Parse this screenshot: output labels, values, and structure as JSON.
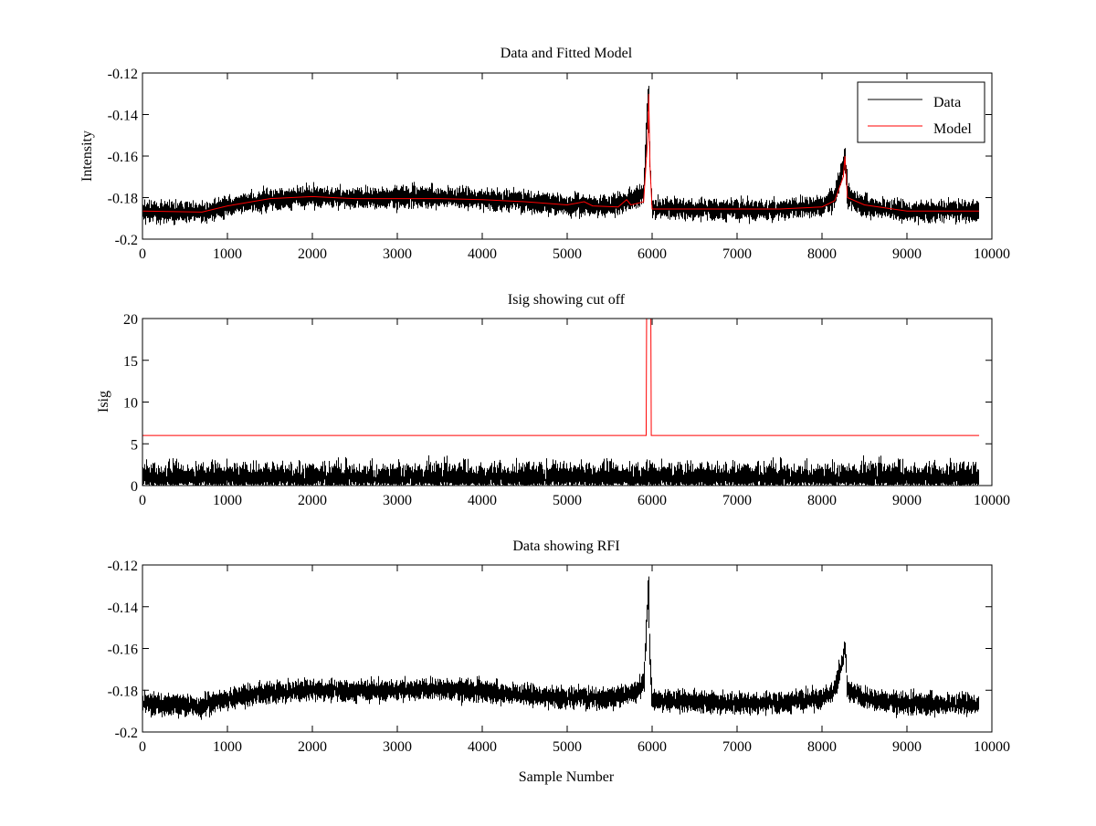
{
  "colors": {
    "data": "#000000",
    "model": "#ff0000",
    "axes": "#000000",
    "background": "#ffffff"
  },
  "chart_data": [
    {
      "type": "line",
      "title": "Data and Fitted Model",
      "xlabel": "",
      "ylabel": "Intensity",
      "xlim": [
        0,
        10000
      ],
      "ylim": [
        -0.2,
        -0.12
      ],
      "xticks": [
        0,
        1000,
        2000,
        3000,
        4000,
        5000,
        6000,
        7000,
        8000,
        9000,
        10000
      ],
      "xtick_labels": [
        "0",
        "1000",
        "2000",
        "3000",
        "4000",
        "5000",
        "6000",
        "7000",
        "8000",
        "9000",
        "10000"
      ],
      "yticks": [
        -0.2,
        -0.18,
        -0.16,
        -0.14,
        -0.12
      ],
      "ytick_labels": [
        "-0.2",
        "-0.18",
        "-0.16",
        "-0.14",
        "-0.12"
      ],
      "legend": {
        "position": "top-right",
        "entries": [
          "Data",
          "Model"
        ]
      },
      "series": [
        {
          "name": "Data",
          "color": "#000000",
          "kind": "noisy",
          "n": 9850,
          "noise_amp": 0.0045,
          "x": [
            0,
            700,
            1000,
            1500,
            2000,
            2500,
            3000,
            3500,
            4000,
            4500,
            5000,
            5500,
            5700,
            5900,
            5950,
            5960,
            5970,
            6000,
            6500,
            7000,
            7500,
            8000,
            8150,
            8250,
            8270,
            8300,
            8500,
            9000,
            9850
          ],
          "y": [
            -0.1865,
            -0.1875,
            -0.184,
            -0.181,
            -0.1795,
            -0.1805,
            -0.18,
            -0.1795,
            -0.1805,
            -0.182,
            -0.1835,
            -0.184,
            -0.182,
            -0.178,
            -0.135,
            -0.128,
            -0.16,
            -0.1845,
            -0.1855,
            -0.186,
            -0.186,
            -0.184,
            -0.18,
            -0.165,
            -0.158,
            -0.18,
            -0.184,
            -0.1865,
            -0.1865
          ]
        },
        {
          "name": "Model",
          "color": "#ff0000",
          "kind": "line",
          "x": [
            0,
            700,
            1000,
            1500,
            2000,
            2500,
            3000,
            3500,
            4000,
            4500,
            5000,
            5200,
            5300,
            5600,
            5700,
            5750,
            5900,
            5950,
            5960,
            5975,
            6000,
            6500,
            7000,
            7500,
            8000,
            8150,
            8250,
            8270,
            8300,
            8500,
            9000,
            9850
          ],
          "y": [
            -0.1865,
            -0.187,
            -0.184,
            -0.1805,
            -0.1795,
            -0.1805,
            -0.1805,
            -0.1805,
            -0.181,
            -0.182,
            -0.1835,
            -0.182,
            -0.184,
            -0.1845,
            -0.181,
            -0.1835,
            -0.182,
            -0.15,
            -0.13,
            -0.165,
            -0.1855,
            -0.1855,
            -0.1855,
            -0.1855,
            -0.1845,
            -0.1815,
            -0.17,
            -0.16,
            -0.18,
            -0.1835,
            -0.1865,
            -0.1865
          ]
        }
      ]
    },
    {
      "type": "line",
      "title": "Isig showing cut off",
      "xlabel": "",
      "ylabel": "Isig",
      "xlim": [
        0,
        10000
      ],
      "ylim": [
        0,
        20
      ],
      "xticks": [
        0,
        1000,
        2000,
        3000,
        4000,
        5000,
        6000,
        7000,
        8000,
        9000,
        10000
      ],
      "xtick_labels": [
        "0",
        "1000",
        "2000",
        "3000",
        "4000",
        "5000",
        "6000",
        "7000",
        "8000",
        "9000",
        "10000"
      ],
      "yticks": [
        0,
        5,
        10,
        15,
        20
      ],
      "ytick_labels": [
        "0",
        "5",
        "10",
        "15",
        "20"
      ],
      "series": [
        {
          "name": "Isig",
          "color": "#000000",
          "kind": "abs-noise",
          "n": 9850,
          "noise_amp": 1.2,
          "x": [
            0,
            9850
          ],
          "y": [
            0,
            0
          ]
        },
        {
          "name": "Cut off",
          "color": "#ff0000",
          "kind": "line",
          "x": [
            0,
            5930,
            5935,
            5985,
            5990,
            9850
          ],
          "y": [
            6,
            6,
            20,
            20,
            6,
            6
          ]
        }
      ]
    },
    {
      "type": "line",
      "title": "Data showing RFI",
      "xlabel": "Sample Number",
      "ylabel": "",
      "xlim": [
        0,
        10000
      ],
      "ylim": [
        -0.2,
        -0.12
      ],
      "xticks": [
        0,
        1000,
        2000,
        3000,
        4000,
        5000,
        6000,
        7000,
        8000,
        9000,
        10000
      ],
      "xtick_labels": [
        "0",
        "1000",
        "2000",
        "3000",
        "4000",
        "5000",
        "6000",
        "7000",
        "8000",
        "9000",
        "10000"
      ],
      "yticks": [
        -0.2,
        -0.18,
        -0.16,
        -0.14,
        -0.12
      ],
      "ytick_labels": [
        "-0.2",
        "-0.18",
        "-0.16",
        "-0.14",
        "-0.12"
      ],
      "series": [
        {
          "name": "Data",
          "color": "#000000",
          "kind": "noisy",
          "n": 9850,
          "noise_amp": 0.0045,
          "x": [
            0,
            700,
            1000,
            1500,
            2000,
            2500,
            3000,
            3500,
            4000,
            4500,
            5000,
            5500,
            5700,
            5900,
            5950,
            5960,
            5970,
            6000,
            6500,
            7000,
            7500,
            8000,
            8150,
            8250,
            8270,
            8300,
            8500,
            9000,
            9850
          ],
          "y": [
            -0.1865,
            -0.1875,
            -0.184,
            -0.181,
            -0.1795,
            -0.1805,
            -0.18,
            -0.1795,
            -0.1805,
            -0.182,
            -0.1835,
            -0.184,
            -0.182,
            -0.178,
            -0.135,
            -0.128,
            -0.16,
            -0.1845,
            -0.1855,
            -0.186,
            -0.186,
            -0.184,
            -0.18,
            -0.165,
            -0.158,
            -0.18,
            -0.184,
            -0.1865,
            -0.1865
          ]
        }
      ]
    }
  ]
}
